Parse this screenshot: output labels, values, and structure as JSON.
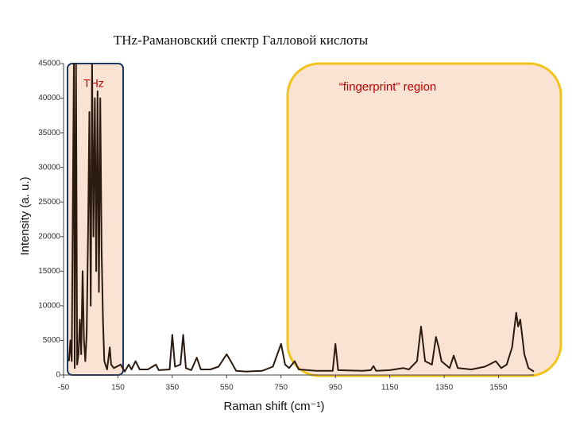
{
  "chart_data": {
    "type": "line",
    "title": "THz-Рамановский спектр Галловой кислоты",
    "xlabel": "Raman shift (cm⁻¹)",
    "ylabel": "Intensity (a. u.)",
    "annotations": [
      "THz",
      "“fingerprint” region"
    ],
    "xlim": [
      -50,
      1680
    ],
    "xticks": [
      -50,
      150,
      350,
      550,
      750,
      950,
      1150,
      1350,
      1550
    ],
    "ylim": [
      0,
      45000
    ],
    "yticks": [
      0,
      5000,
      10000,
      15000,
      20000,
      25000,
      30000,
      35000,
      40000,
      45000
    ],
    "grid": false,
    "series": [
      {
        "color": "#2b1a10",
        "x": [
          -30,
          -25,
          -20,
          -15,
          -12,
          -9,
          -4,
          0,
          5,
          10,
          15,
          20,
          25,
          30,
          35,
          40,
          45,
          50,
          55,
          60,
          65,
          70,
          75,
          80,
          85,
          90,
          95,
          100,
          110,
          120,
          125,
          135,
          160,
          175,
          190,
          200,
          215,
          230,
          260,
          290,
          300,
          340,
          350,
          360,
          380,
          390,
          400,
          420,
          440,
          455,
          490,
          520,
          550,
          565,
          585,
          620,
          680,
          720,
          750,
          765,
          780,
          800,
          815,
          880,
          940,
          950,
          960,
          1050,
          1080,
          1090,
          1100,
          1150,
          1200,
          1220,
          1250,
          1265,
          1280,
          1305,
          1320,
          1330,
          1340,
          1370,
          1385,
          1400,
          1450,
          1500,
          1540,
          1560,
          1580,
          1600,
          1615,
          1622,
          1630,
          1645,
          1660,
          1680
        ],
        "values": [
          2000,
          5000,
          2000,
          30000,
          45000,
          1000,
          45000,
          1500,
          3000,
          8000,
          3000,
          15000,
          5000,
          2000,
          6000,
          20000,
          38000,
          10000,
          45000,
          20000,
          40000,
          15000,
          41000,
          12000,
          40000,
          18000,
          8000,
          2000,
          800,
          4000,
          1500,
          1000,
          1500,
          500,
          1500,
          800,
          2000,
          800,
          800,
          1500,
          700,
          800,
          5800,
          1200,
          1500,
          5800,
          1000,
          700,
          2500,
          800,
          800,
          1200,
          3000,
          2000,
          600,
          500,
          600,
          1200,
          4500,
          1500,
          1000,
          2000,
          800,
          600,
          600,
          4500,
          700,
          600,
          700,
          1300,
          600,
          700,
          1000,
          800,
          2000,
          7000,
          2000,
          1500,
          5500,
          4000,
          2000,
          1000,
          2800,
          1000,
          800,
          1200,
          2000,
          1000,
          1500,
          4000,
          9000,
          7000,
          8000,
          3000,
          1000,
          500
        ]
      }
    ]
  }
}
